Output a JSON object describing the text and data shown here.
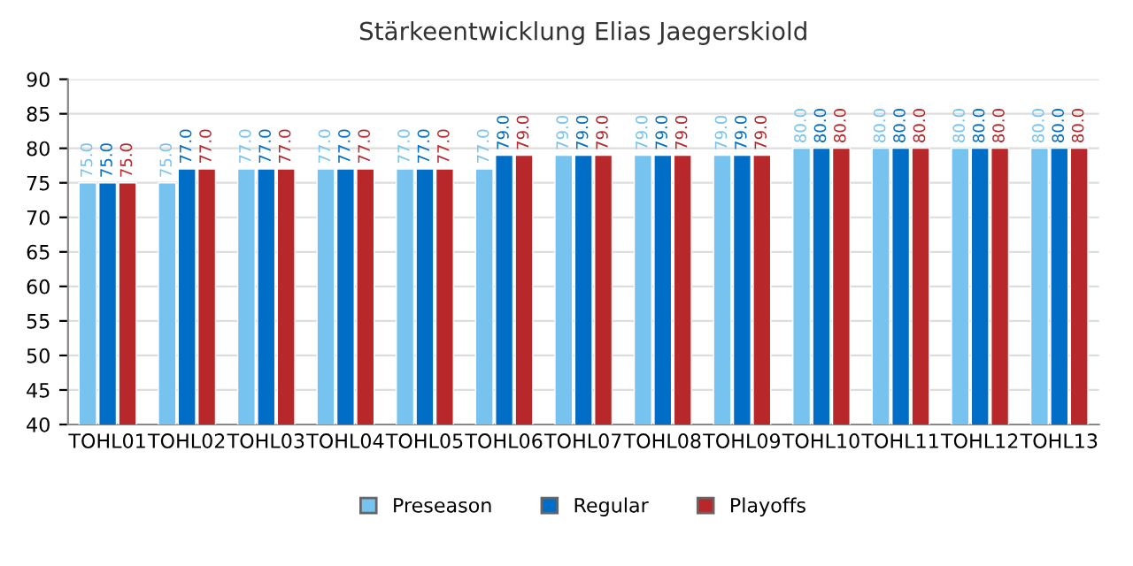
{
  "chart_data": {
    "type": "bar",
    "title": "Stärkeentwicklung Elias Jaegerskiold",
    "categories": [
      "TOHL01",
      "TOHL02",
      "TOHL03",
      "TOHL04",
      "TOHL05",
      "TOHL06",
      "TOHL07",
      "TOHL08",
      "TOHL09",
      "TOHL10",
      "TOHL11",
      "TOHL12",
      "TOHL13"
    ],
    "series": [
      {
        "name": "Preseason",
        "color": "#76c3ef",
        "values": [
          75,
          75,
          77,
          77,
          77,
          77,
          79,
          79,
          79,
          80,
          80,
          80,
          80
        ],
        "value_labels": [
          "75.0",
          "75.0",
          "77.0",
          "77.0",
          "77.0",
          "77.0",
          "79.0",
          "79.0",
          "79.0",
          "80.0",
          "80.0",
          "80.0",
          "80.0"
        ]
      },
      {
        "name": "Regular",
        "color": "#006ec6",
        "values": [
          75,
          77,
          77,
          77,
          77,
          79,
          79,
          79,
          79,
          80,
          80,
          80,
          80
        ],
        "value_labels": [
          "75.0",
          "77.0",
          "77.0",
          "77.0",
          "77.0",
          "79.0",
          "79.0",
          "79.0",
          "79.0",
          "80.0",
          "80.0",
          "80.0",
          "80.0"
        ]
      },
      {
        "name": "Playoffs",
        "color": "#b8272a",
        "values": [
          75,
          77,
          77,
          77,
          77,
          79,
          79,
          79,
          79,
          80,
          80,
          80,
          80
        ],
        "value_labels": [
          "75.0",
          "77.0",
          "77.0",
          "77.0",
          "77.0",
          "79.0",
          "79.0",
          "79.0",
          "79.0",
          "80.0",
          "80.0",
          "80.0",
          "80.0"
        ]
      }
    ],
    "ylim": [
      40,
      90
    ],
    "yticks": [
      40,
      45,
      50,
      55,
      60,
      65,
      70,
      75,
      80,
      85,
      90
    ],
    "grid": "y",
    "legend": "bottom"
  }
}
